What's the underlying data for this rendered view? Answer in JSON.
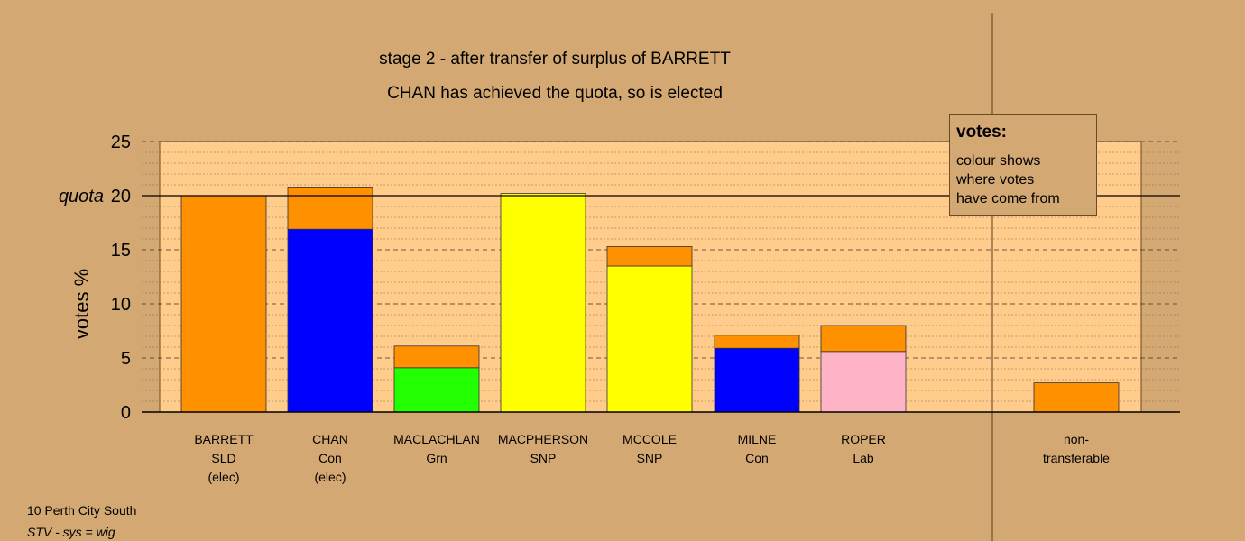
{
  "chart_data": {
    "type": "bar",
    "title": "stage 2 - after transfer of surplus of BARRETT",
    "subtitle": "CHAN has achieved the quota, so is elected",
    "ylabel": "votes %",
    "ylim": [
      0,
      25
    ],
    "yticks": [
      0,
      5,
      10,
      15,
      20,
      25
    ],
    "quota": 20,
    "quota_label": "quota",
    "categories": [
      {
        "lines": [
          "BARRETT",
          "SLD",
          "(elec)"
        ]
      },
      {
        "lines": [
          "CHAN",
          "Con",
          "(elec)"
        ]
      },
      {
        "lines": [
          "MACLACHLAN",
          "Grn"
        ]
      },
      {
        "lines": [
          "MACPHERSON",
          "SNP"
        ]
      },
      {
        "lines": [
          "MCCOLE",
          "SNP"
        ]
      },
      {
        "lines": [
          "MILNE",
          "Con"
        ]
      },
      {
        "lines": [
          "ROPER",
          "Lab"
        ]
      },
      {
        "lines": [
          "non-",
          "transferable"
        ]
      }
    ],
    "bars": [
      {
        "segments": [
          {
            "value": 20.0,
            "color": "#ff9000"
          }
        ]
      },
      {
        "segments": [
          {
            "value": 16.9,
            "color": "#0000ff"
          },
          {
            "value": 3.9,
            "color": "#ff9000"
          }
        ]
      },
      {
        "segments": [
          {
            "value": 4.1,
            "color": "#22ff00"
          },
          {
            "value": 2.0,
            "color": "#ff9000"
          }
        ]
      },
      {
        "segments": [
          {
            "value": 20.2,
            "color": "#ffff00"
          }
        ]
      },
      {
        "segments": [
          {
            "value": 13.5,
            "color": "#ffff00"
          },
          {
            "value": 1.8,
            "color": "#ff9000"
          }
        ]
      },
      {
        "segments": [
          {
            "value": 5.9,
            "color": "#0000ff"
          },
          {
            "value": 1.2,
            "color": "#ff9000"
          }
        ]
      },
      {
        "segments": [
          {
            "value": 5.6,
            "color": "#ffb3c6"
          },
          {
            "value": 2.4,
            "color": "#ff9000"
          }
        ]
      },
      {
        "segments": [
          {
            "value": 2.7,
            "color": "#ff9000"
          }
        ]
      }
    ],
    "grid": true
  },
  "legend": {
    "title": "votes:",
    "lines": [
      "colour shows",
      "where votes",
      "have come from"
    ]
  },
  "footer": {
    "line1": "10 Perth City South",
    "line2": "STV - sys = wig"
  },
  "colors": {
    "background": "#d4a873",
    "plot_area": "#ffcc8c"
  }
}
